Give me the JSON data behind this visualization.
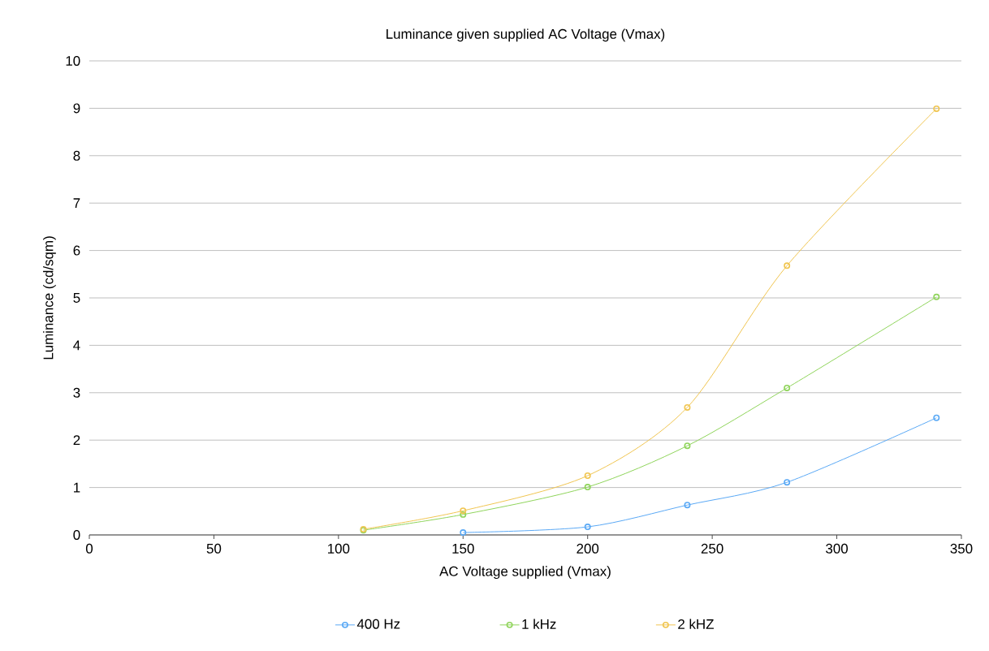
{
  "chart_data": {
    "type": "line",
    "title": "Luminance given supplied AC Voltage (Vmax)",
    "xlabel": "AC Voltage supplied (Vmax)",
    "ylabel": "Luminance (cd/sqm)",
    "xlim": [
      0,
      350
    ],
    "xticks": [
      0,
      50,
      100,
      150,
      200,
      250,
      300,
      350
    ],
    "ylim": [
      0,
      10
    ],
    "yticks": [
      0,
      1,
      2,
      3,
      4,
      5,
      6,
      7,
      8,
      9,
      10
    ],
    "grid": "y",
    "legend": "bottom",
    "marker": "circle",
    "line_style": "solid",
    "series": [
      {
        "name": "400 Hz",
        "color": "#5aa9f5",
        "x": [
          150,
          200,
          240,
          280,
          340
        ],
        "values": [
          0.05,
          0.17,
          0.63,
          1.11,
          2.47
        ]
      },
      {
        "name": "1 kHz",
        "color": "#8fd45a",
        "x": [
          110,
          150,
          200,
          240,
          280,
          340
        ],
        "values": [
          0.1,
          0.43,
          1.01,
          1.88,
          3.1,
          5.02
        ]
      },
      {
        "name": "2 kHZ",
        "color": "#f0c550",
        "x": [
          110,
          150,
          200,
          240,
          280,
          340
        ],
        "values": [
          0.12,
          0.51,
          1.25,
          2.69,
          5.68,
          8.99
        ]
      }
    ]
  }
}
